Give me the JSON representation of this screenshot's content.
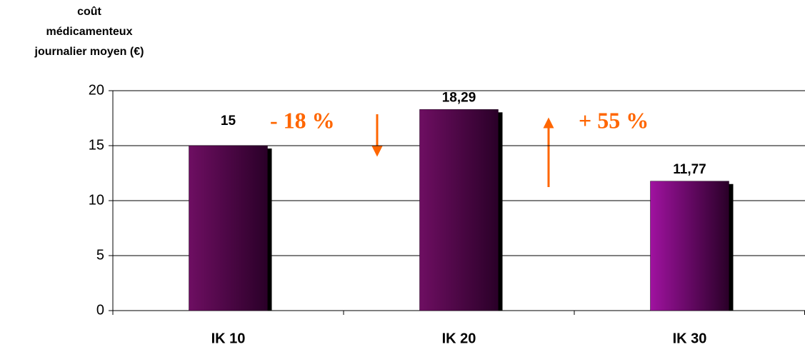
{
  "chart_data": {
    "type": "bar",
    "ylabel": [
      "coût",
      "médicamenteux",
      "journalier moyen (€)"
    ],
    "categories": [
      "IK 10",
      "IK 20",
      "IK 30"
    ],
    "values": [
      15,
      18.29,
      11.77
    ],
    "value_labels": [
      "15",
      "18,29",
      "11,77"
    ],
    "colors": [
      "#6e0e62",
      "#6e0e62",
      "#a012a0"
    ],
    "ylim": [
      0,
      20
    ],
    "yticks": [
      0,
      5,
      10,
      15,
      20
    ],
    "grid": true,
    "annotations": [
      "- 18 %",
      "+ 55 %"
    ]
  }
}
